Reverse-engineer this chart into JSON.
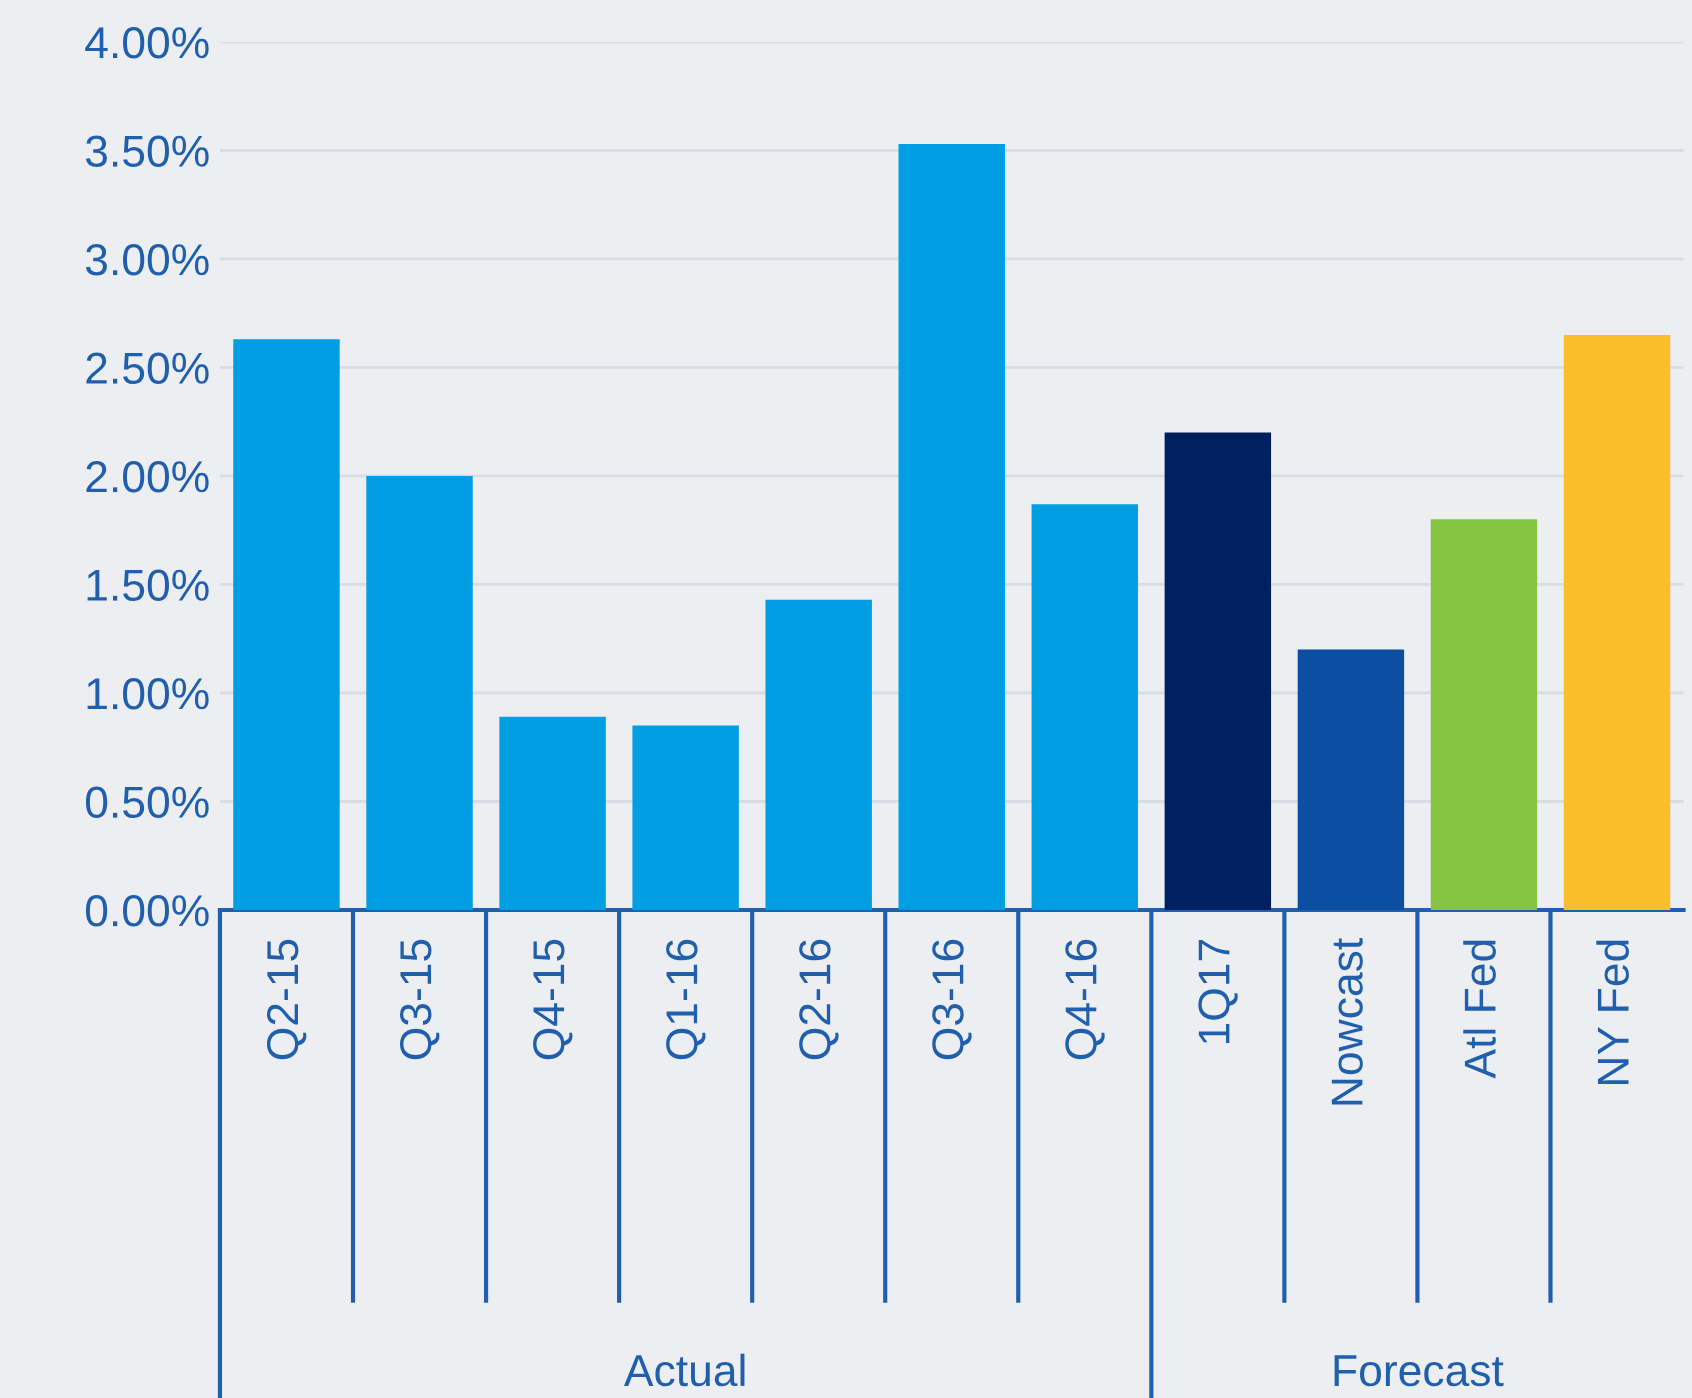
{
  "chart_data": {
    "type": "bar",
    "categories": [
      "Q2-15",
      "Q3-15",
      "Q4-15",
      "Q1-16",
      "Q2-16",
      "Q3-16",
      "Q4-16",
      "1Q17",
      "Nowcast",
      "Atl Fed",
      "NY Fed"
    ],
    "values": [
      2.63,
      2.0,
      0.89,
      0.85,
      1.43,
      3.53,
      1.87,
      2.2,
      1.2,
      1.8,
      2.65
    ],
    "colors": [
      "#009fe3",
      "#009fe3",
      "#009fe3",
      "#009fe3",
      "#009fe3",
      "#009fe3",
      "#009fe3",
      "#002060",
      "#0b4ea2",
      "#85c441",
      "#fbbd2a"
    ],
    "ylim": [
      0,
      4
    ],
    "yticks": [
      {
        "value": 0,
        "label": "0.00%"
      },
      {
        "value": 0.5,
        "label": "0.50%"
      },
      {
        "value": 1,
        "label": "1.00%"
      },
      {
        "value": 1.5,
        "label": "1.50%"
      },
      {
        "value": 2,
        "label": "2.00%"
      },
      {
        "value": 2.5,
        "label": "2.50%"
      },
      {
        "value": 3,
        "label": "3.00%"
      },
      {
        "value": 3.5,
        "label": "3.50%"
      },
      {
        "value": 4,
        "label": "4.00%"
      }
    ],
    "grid": "y",
    "legend": false,
    "annotations": [
      "Actual",
      "Forecast"
    ]
  }
}
